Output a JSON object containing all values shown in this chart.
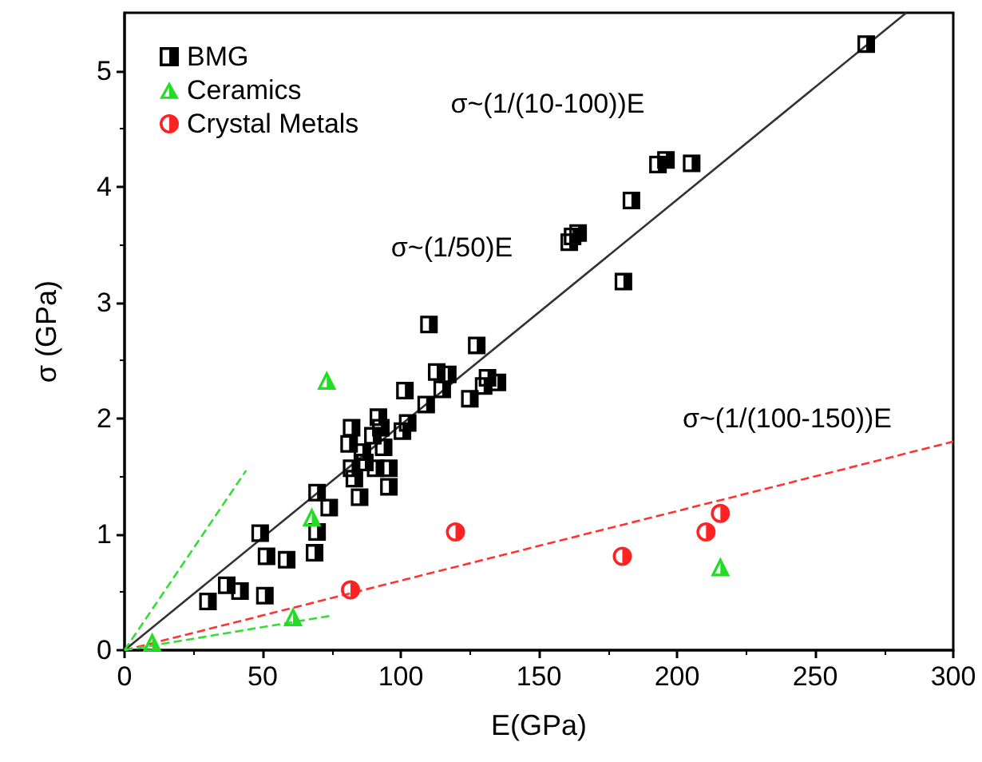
{
  "chart_data": {
    "type": "scatter",
    "xlabel": "E(GPa)",
    "ylabel": "σ (GPa)",
    "xlim": [
      0,
      300
    ],
    "xticks": [
      0,
      50,
      100,
      150,
      200,
      250,
      300
    ],
    "ylim": [
      0,
      5.5
    ],
    "yticks": [
      0,
      1,
      2,
      3,
      4,
      5
    ],
    "grid": false,
    "legend": "top left",
    "series": [
      {
        "name": "BMG",
        "color": "#000000",
        "marker": "square",
        "x": [
          30.2,
          37,
          41.8,
          50.8,
          51.4,
          58.7,
          49.1,
          68.8,
          69.7,
          69.7,
          74.1,
          82.2,
          81.3,
          86.1,
          83.2,
          85.1,
          82.2,
          87,
          91.9,
          92.8,
          89.9,
          93.8,
          90.9,
          95.7,
          95.7,
          102.5,
          100.6,
          101.5,
          109.2,
          110.2,
          127.5,
          113,
          131.4,
          125,
          117,
          115,
          130,
          135,
          161,
          162.2,
          164.2,
          180.6,
          183.5,
          193.1,
          196,
          205.3,
          268.5
        ],
        "values": [
          0.42,
          0.56,
          0.51,
          0.47,
          0.81,
          0.78,
          1.01,
          0.84,
          1.02,
          1.36,
          1.23,
          1.92,
          1.78,
          1.71,
          1.48,
          1.32,
          1.57,
          1.62,
          2.01,
          1.92,
          1.85,
          1.75,
          1.57,
          1.57,
          1.41,
          1.96,
          1.89,
          2.24,
          2.12,
          2.81,
          2.63,
          2.4,
          2.35,
          2.17,
          2.38,
          2.25,
          2.28,
          2.31,
          3.52,
          3.57,
          3.6,
          3.18,
          3.88,
          4.19,
          4.23,
          4.2,
          5.23
        ]
      },
      {
        "name": "Ceramics",
        "color": "#22dd22",
        "marker": "triangle",
        "x": [
          10,
          61,
          67.8,
          73.2,
          215.7
        ],
        "values": [
          0.07,
          0.29,
          1.15,
          2.33,
          0.72
        ]
      },
      {
        "name": "Crystal Metals",
        "color": "#ff2222",
        "marker": "circle",
        "x": [
          81.8,
          119.8,
          180.2,
          210.5,
          215.7
        ],
        "values": [
          0.52,
          1.02,
          0.81,
          1.02,
          1.18
        ]
      },
      {
        "type": "line",
        "color": "#333333",
        "line_style": "solid",
        "marker": "none",
        "x": [
          0,
          283
        ],
        "values": [
          0,
          5.5
        ]
      },
      {
        "type": "line",
        "color": "#ff3333",
        "line_style": "dashed",
        "marker": "none",
        "x": [
          0,
          300
        ],
        "values": [
          0,
          1.8
        ]
      },
      {
        "type": "line",
        "color": "#33dd33",
        "line_style": "dashed",
        "marker": "none",
        "x": [
          0,
          44
        ],
        "values": [
          0,
          1.55
        ]
      },
      {
        "type": "line",
        "color": "#33dd33",
        "line_style": "dashed",
        "marker": "none",
        "x": [
          0,
          75.4
        ],
        "values": [
          0,
          0.3
        ]
      }
    ],
    "annotations": [
      "σ~(1/(10-100))E",
      "σ~(1/50)E",
      "σ~(1/(100-150))E"
    ]
  }
}
